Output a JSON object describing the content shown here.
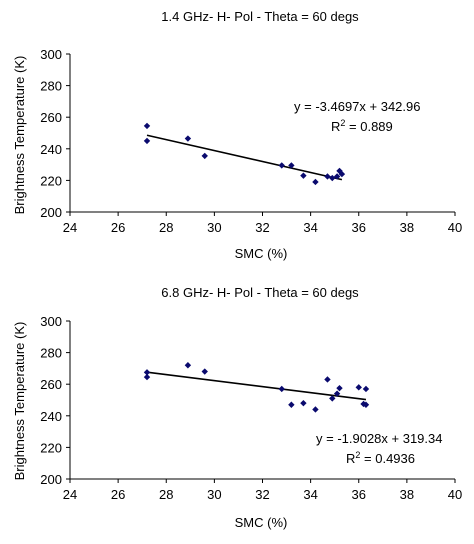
{
  "chart_data": [
    {
      "type": "scatter",
      "title": "1.4 GHz- H- Pol - Theta = 60 degs",
      "xlabel": "SMC (%)",
      "ylabel": "Brightness Temperature (K)",
      "xlim": [
        24,
        40
      ],
      "ylim": [
        200,
        300
      ],
      "xticks": [
        "24",
        "26",
        "28",
        "30",
        "32",
        "34",
        "36",
        "38",
        "40"
      ],
      "yticks": [
        "200",
        "220",
        "240",
        "260",
        "280",
        "300"
      ],
      "grid": false,
      "marker_color": "#0a0a6e",
      "line_color": "#000000",
      "points": [
        {
          "x": 27.2,
          "y": 254.5
        },
        {
          "x": 27.2,
          "y": 245
        },
        {
          "x": 28.9,
          "y": 246.5
        },
        {
          "x": 29.6,
          "y": 235.5
        },
        {
          "x": 32.8,
          "y": 229.5
        },
        {
          "x": 33.2,
          "y": 229.5
        },
        {
          "x": 33.7,
          "y": 223
        },
        {
          "x": 34.2,
          "y": 219
        },
        {
          "x": 34.7,
          "y": 222.5
        },
        {
          "x": 34.9,
          "y": 221.5
        },
        {
          "x": 35.1,
          "y": 222.5
        },
        {
          "x": 35.2,
          "y": 226
        },
        {
          "x": 35.3,
          "y": 224
        }
      ],
      "trendline": {
        "slope": -3.4697,
        "intercept": 342.96,
        "x_range": [
          27.2,
          35.3
        ]
      },
      "equation_text": "y = -3.4697x + 342.96",
      "r2_prefix": "R",
      "r2_sup": "2",
      "r2_value": " = 0.889"
    },
    {
      "type": "scatter",
      "title": "6.8 GHz- H- Pol - Theta = 60 degs",
      "xlabel": "SMC (%)",
      "ylabel": "Brightness Temperature (K)",
      "xlim": [
        24,
        40
      ],
      "ylim": [
        200,
        300
      ],
      "xticks": [
        "24",
        "26",
        "28",
        "30",
        "32",
        "34",
        "36",
        "38",
        "40"
      ],
      "yticks": [
        "200",
        "220",
        "240",
        "260",
        "280",
        "300"
      ],
      "grid": false,
      "marker_color": "#0a0a6e",
      "line_color": "#000000",
      "points": [
        {
          "x": 27.2,
          "y": 267.5
        },
        {
          "x": 27.2,
          "y": 264.5
        },
        {
          "x": 28.9,
          "y": 272
        },
        {
          "x": 29.6,
          "y": 268
        },
        {
          "x": 32.8,
          "y": 257
        },
        {
          "x": 33.2,
          "y": 247
        },
        {
          "x": 33.7,
          "y": 248
        },
        {
          "x": 34.2,
          "y": 244
        },
        {
          "x": 34.7,
          "y": 263
        },
        {
          "x": 34.9,
          "y": 251
        },
        {
          "x": 35.1,
          "y": 254
        },
        {
          "x": 35.2,
          "y": 257.5
        },
        {
          "x": 36.0,
          "y": 258
        },
        {
          "x": 36.2,
          "y": 247.5
        },
        {
          "x": 36.3,
          "y": 257
        },
        {
          "x": 36.3,
          "y": 247
        }
      ],
      "trendline": {
        "slope": -1.9028,
        "intercept": 319.34,
        "x_range": [
          27.2,
          36.3
        ]
      },
      "equation_text": "y = -1.9028x + 319.34",
      "r2_prefix": "R",
      "r2_sup": "2",
      "r2_value": " = 0.4936"
    }
  ]
}
